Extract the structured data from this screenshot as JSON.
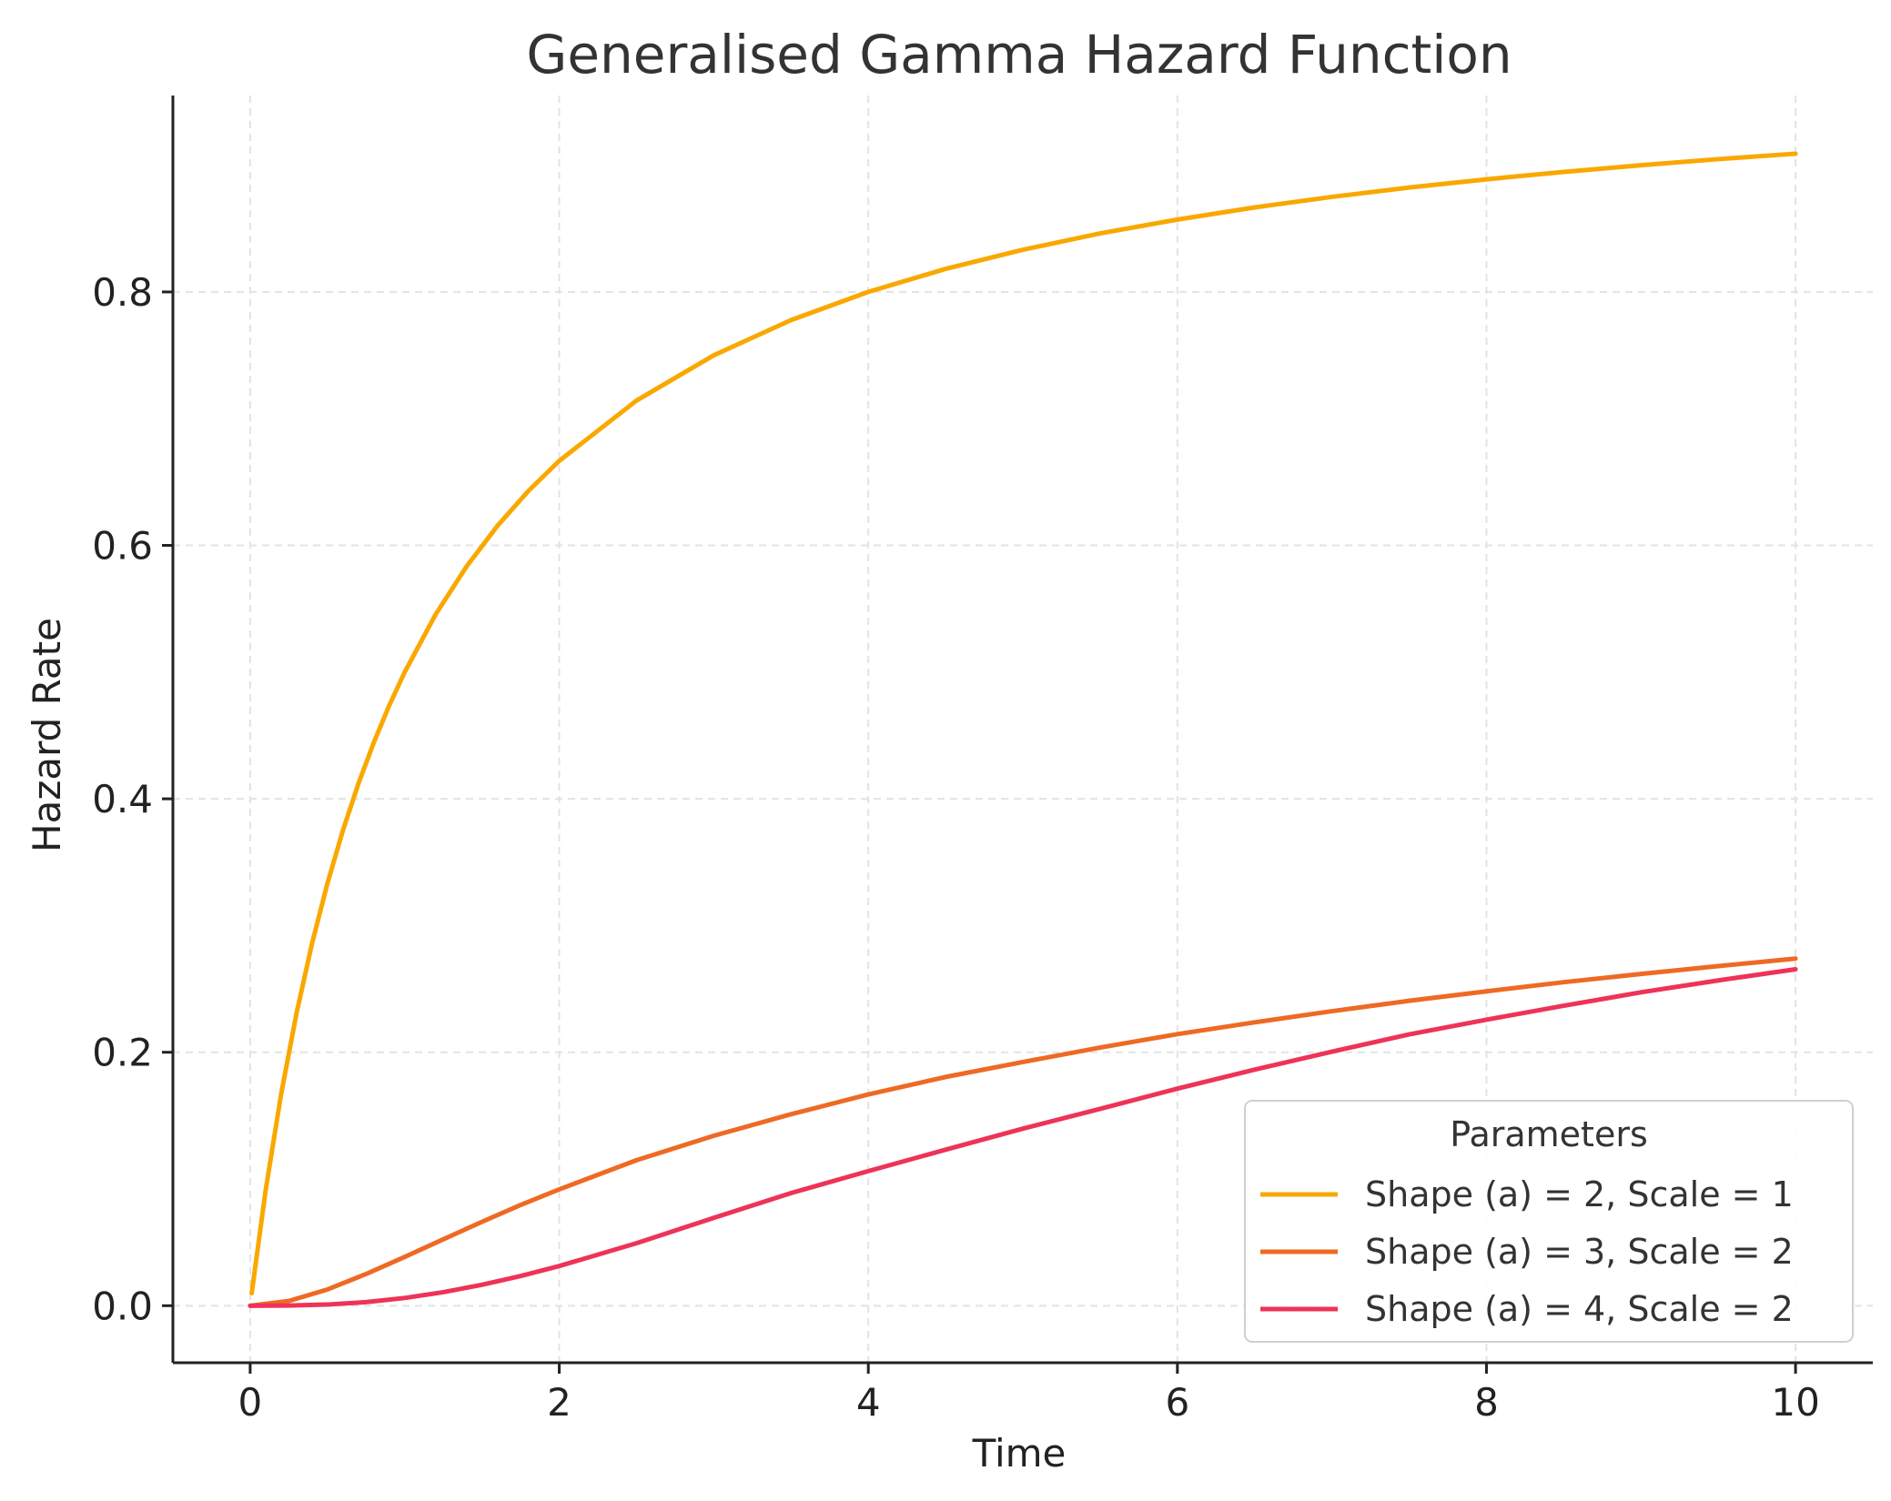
{
  "chart_data": {
    "type": "line",
    "title": "Generalised Gamma Hazard Function",
    "xlabel": "Time",
    "ylabel": "Hazard Rate",
    "xlim": [
      -0.5,
      10.5
    ],
    "ylim": [
      -0.045,
      0.955
    ],
    "xticks": [
      0,
      2,
      4,
      6,
      8,
      10
    ],
    "xtick_labels": [
      "0",
      "2",
      "4",
      "6",
      "8",
      "10"
    ],
    "yticks": [
      0.0,
      0.2,
      0.4,
      0.6,
      0.8
    ],
    "ytick_labels": [
      "0.0",
      "0.2",
      "0.4",
      "0.6",
      "0.8"
    ],
    "grid": true,
    "legend": {
      "title": "Parameters",
      "position": "lower-right"
    },
    "series": [
      {
        "name": "Shape (a) = 2, Scale = 1",
        "color": "#F9A800",
        "x": [
          0.01,
          0.1,
          0.2,
          0.3,
          0.4,
          0.5,
          0.6,
          0.7,
          0.8,
          0.9,
          1.0,
          1.2,
          1.4,
          1.6,
          1.8,
          2.0,
          2.5,
          3.0,
          3.5,
          4.0,
          4.5,
          5.0,
          5.5,
          6.0,
          6.5,
          7.0,
          7.5,
          8.0,
          8.5,
          9.0,
          9.5,
          10.0
        ],
        "y": [
          0.0099,
          0.0909,
          0.1667,
          0.2308,
          0.2857,
          0.3333,
          0.375,
          0.4118,
          0.4444,
          0.4737,
          0.5,
          0.5455,
          0.5833,
          0.6154,
          0.6429,
          0.6667,
          0.7143,
          0.75,
          0.7778,
          0.8,
          0.8182,
          0.8333,
          0.8462,
          0.8571,
          0.8667,
          0.875,
          0.8824,
          0.8889,
          0.8947,
          0.9,
          0.9048,
          0.9091
        ]
      },
      {
        "name": "Shape (a) = 3, Scale = 2",
        "color": "#EE6A24",
        "x": [
          0.0,
          0.25,
          0.5,
          0.75,
          1.0,
          1.25,
          1.5,
          1.75,
          2.0,
          2.5,
          3.0,
          3.5,
          4.0,
          4.5,
          5.0,
          5.5,
          6.0,
          6.5,
          7.0,
          7.5,
          8.0,
          8.5,
          9.0,
          9.5,
          10.0
        ],
        "y": [
          0.0,
          0.0037,
          0.0128,
          0.025,
          0.0385,
          0.0524,
          0.0662,
          0.0795,
          0.0918,
          0.1148,
          0.1341,
          0.1511,
          0.1667,
          0.1805,
          0.1923,
          0.2037,
          0.2143,
          0.2236,
          0.2324,
          0.2406,
          0.2481,
          0.2553,
          0.2618,
          0.268,
          0.2739
        ]
      },
      {
        "name": "Shape (a) = 4, Scale = 2",
        "color": "#EE3358",
        "x": [
          0.0,
          0.25,
          0.5,
          0.75,
          1.0,
          1.25,
          1.5,
          1.75,
          2.0,
          2.5,
          3.0,
          3.5,
          4.0,
          4.5,
          5.0,
          5.5,
          6.0,
          6.5,
          7.0,
          7.5,
          8.0,
          8.5,
          9.0,
          9.5,
          10.0
        ],
        "y": [
          0.0,
          0.0001,
          0.0009,
          0.0028,
          0.0061,
          0.0107,
          0.0165,
          0.0234,
          0.0313,
          0.0493,
          0.0693,
          0.0889,
          0.1062,
          0.1231,
          0.1397,
          0.1553,
          0.1713,
          0.1863,
          0.2005,
          0.2141,
          0.2257,
          0.2367,
          0.2473,
          0.2567,
          0.2655
        ]
      }
    ]
  }
}
